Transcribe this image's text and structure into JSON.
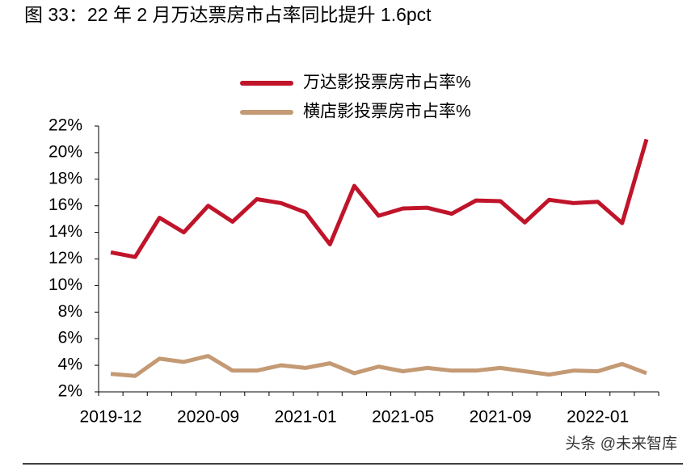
{
  "chart_data": {
    "type": "line",
    "title": "图 33：22 年 2 月万达票房市占率同比提升 1.6pct",
    "watermark": "头条 @未来智库",
    "categories": [
      "2019-12",
      null,
      null,
      null,
      "2020-09",
      null,
      null,
      null,
      "2021-01",
      null,
      null,
      null,
      "2021-05",
      null,
      null,
      null,
      "2021-09",
      null,
      null,
      null,
      "2022-01",
      null,
      null
    ],
    "series": [
      {
        "name": "万达影投票房市占率%",
        "color": "#c0142a",
        "values": [
          12.5,
          12.15,
          15.1,
          14.0,
          16.0,
          14.8,
          16.5,
          16.2,
          15.5,
          13.1,
          17.5,
          15.25,
          15.8,
          15.85,
          15.4,
          16.4,
          16.35,
          14.75,
          16.45,
          16.2,
          16.3,
          14.7,
          21.0
        ]
      },
      {
        "name": "横店影投票房市占率%",
        "color": "#c49a74",
        "values": [
          3.35,
          3.2,
          4.5,
          4.25,
          4.7,
          3.6,
          3.6,
          4.0,
          3.8,
          4.15,
          3.4,
          3.9,
          3.55,
          3.8,
          3.6,
          3.6,
          3.8,
          3.55,
          3.3,
          3.6,
          3.55,
          4.1,
          3.4
        ]
      }
    ],
    "ylim": [
      2,
      22
    ],
    "yticks": [
      {
        "value": 2,
        "label": "2%"
      },
      {
        "value": 4,
        "label": "4%"
      },
      {
        "value": 6,
        "label": "6%"
      },
      {
        "value": 8,
        "label": "8%"
      },
      {
        "value": 10,
        "label": "10%"
      },
      {
        "value": 12,
        "label": "12%"
      },
      {
        "value": 14,
        "label": "14%"
      },
      {
        "value": 16,
        "label": "16%"
      },
      {
        "value": 18,
        "label": "18%"
      },
      {
        "value": 20,
        "label": "20%"
      },
      {
        "value": 22,
        "label": "22%"
      }
    ],
    "grid": false,
    "legend": "top"
  }
}
